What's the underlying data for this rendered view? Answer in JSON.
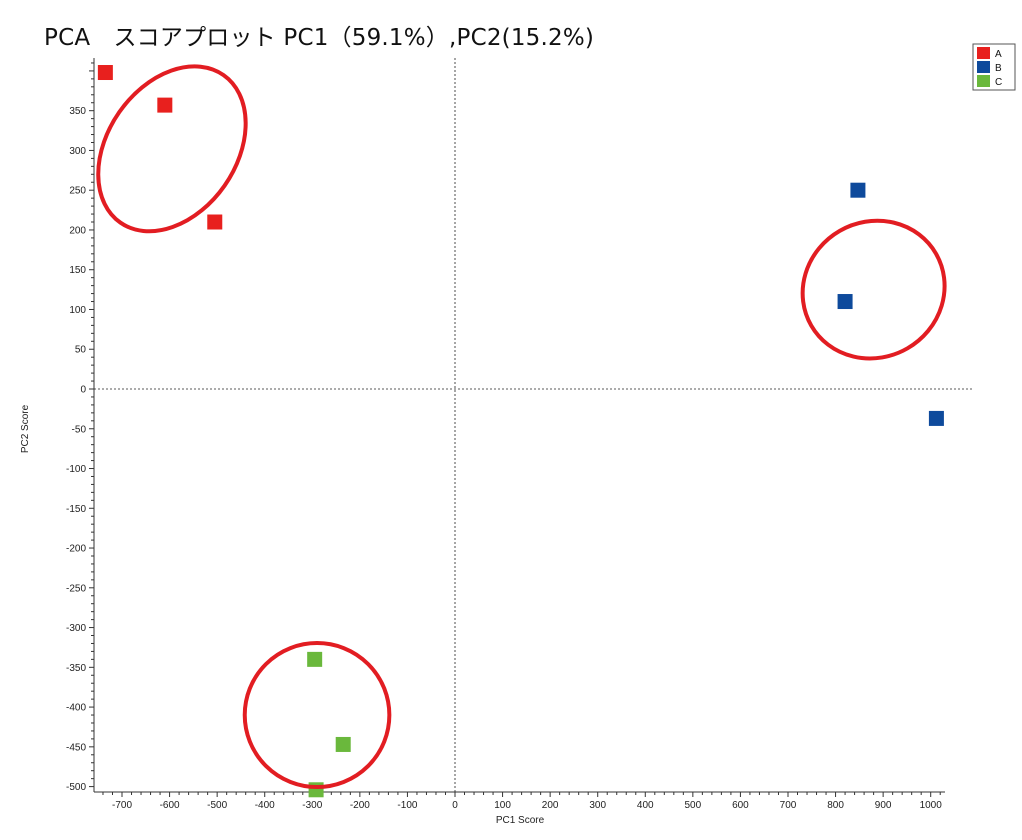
{
  "chart_data": {
    "type": "scatter",
    "title": "PCA　スコアプロット PC1（59.1%）,PC2(15.2%)",
    "xlabel": "PC1 Score",
    "ylabel": "PC2 Score",
    "xlim": [
      -750,
      1030
    ],
    "ylim": [
      -505,
      415
    ],
    "xticks": [
      -700,
      -600,
      -500,
      -400,
      -300,
      -200,
      -100,
      0,
      100,
      200,
      300,
      400,
      500,
      600,
      700,
      800,
      900,
      1000
    ],
    "yticks": [
      -500,
      -450,
      -400,
      -350,
      -300,
      -250,
      -200,
      -150,
      -100,
      -50,
      0,
      50,
      100,
      150,
      200,
      250,
      300,
      350
    ],
    "grid": false,
    "reference_lines": {
      "x": 0,
      "y": 0,
      "style": "dashed"
    },
    "legend_position": "top-right",
    "series": [
      {
        "name": "A",
        "color": "#e8201e",
        "points": [
          [
            -735,
            398
          ],
          [
            -610,
            357
          ],
          [
            -505,
            210
          ]
        ]
      },
      {
        "name": "B",
        "color": "#0e4a9c",
        "points": [
          [
            847,
            250
          ],
          [
            820,
            110
          ],
          [
            1012,
            -37
          ]
        ]
      },
      {
        "name": "C",
        "color": "#6ab83c",
        "points": [
          [
            -295,
            -340
          ],
          [
            -235,
            -447
          ],
          [
            -292,
            -504
          ]
        ]
      }
    ],
    "annotations": [
      {
        "type": "ellipse",
        "color": "#e21d22",
        "group": "A",
        "cx": -595,
        "cy": 302,
        "rx": 270,
        "ry": 90,
        "rotation_deg": 35
      },
      {
        "type": "ellipse",
        "color": "#e21d22",
        "group": "B",
        "cx": 880,
        "cy": 125,
        "rx": 285,
        "ry": 72,
        "rotation_deg": 60
      },
      {
        "type": "ellipse",
        "color": "#e21d22",
        "group": "C",
        "cx": -290,
        "cy": -410,
        "rx": 152,
        "ry": 72,
        "rotation_deg": 0
      }
    ]
  }
}
